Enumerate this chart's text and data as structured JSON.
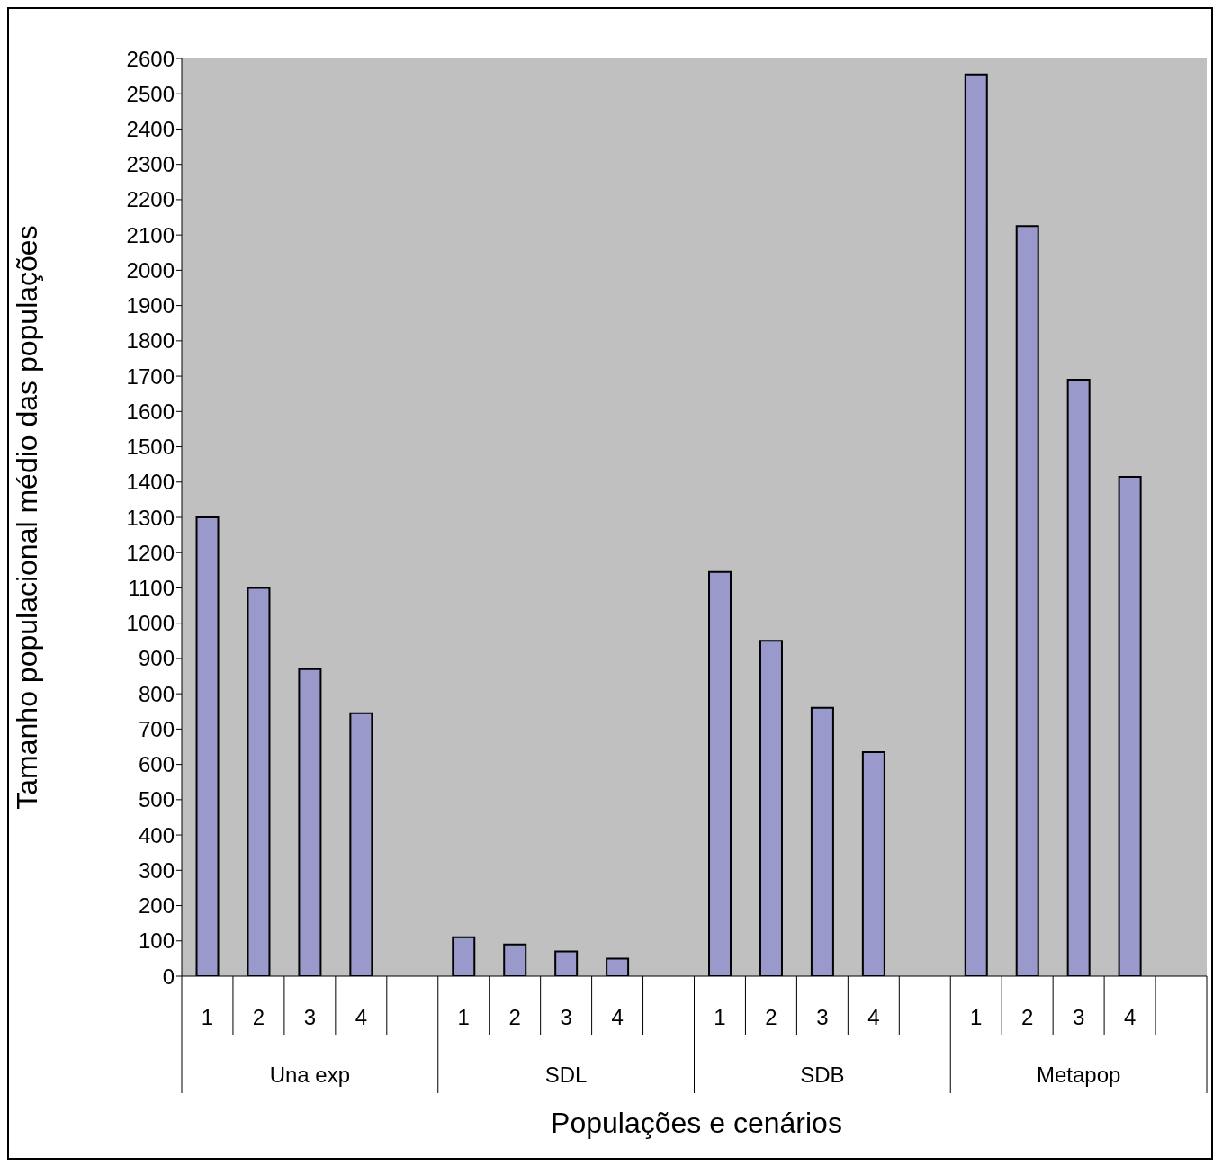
{
  "chart_data": {
    "type": "bar",
    "xlabel": "Populações e cenários",
    "ylabel": "Tamanho populacional médio das populações",
    "categories": [
      "1",
      "2",
      "3",
      "4",
      null,
      "1",
      "2",
      "3",
      "4",
      null,
      "1",
      "2",
      "3",
      "4",
      null,
      "1",
      "2",
      "3",
      "4",
      null
    ],
    "values": [
      1300,
      1100,
      870,
      745,
      null,
      110,
      90,
      70,
      50,
      null,
      1145,
      950,
      760,
      635,
      null,
      2555,
      2125,
      1690,
      1415,
      null
    ],
    "color": "#9999cc",
    "annotations": [
      "Una exp",
      "SDL",
      "SDB",
      "Metapop"
    ],
    "ylim": [
      0,
      2600
    ],
    "yticks": [
      0,
      100,
      200,
      300,
      400,
      500,
      600,
      700,
      800,
      900,
      1000,
      1100,
      1200,
      1300,
      1400,
      1500,
      1600,
      1700,
      1800,
      1900,
      2000,
      2100,
      2200,
      2300,
      2400,
      2500,
      2600
    ],
    "grid": false,
    "legend": false
  }
}
